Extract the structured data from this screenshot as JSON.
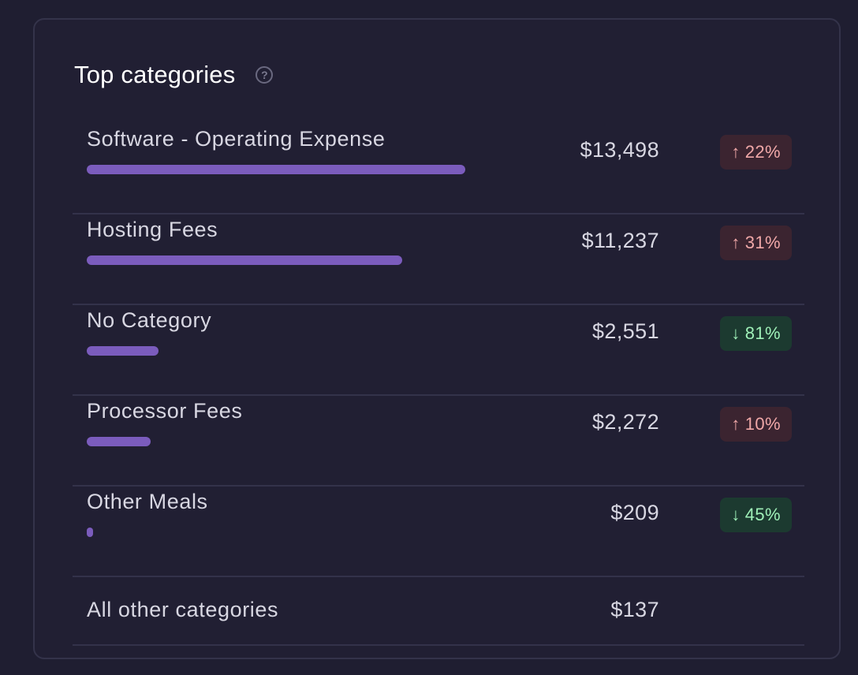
{
  "header": {
    "title": "Top categories",
    "help_icon": "question-icon",
    "help_glyph": "?"
  },
  "colors": {
    "bar": "#7b5cbd",
    "increase_bg": "#3b2430",
    "increase_text": "#f0a8a8",
    "decrease_bg": "#1c3a30",
    "decrease_text": "#9ff0b8"
  },
  "categories": [
    {
      "name": "Software - Operating Expense",
      "amount": "$13,498",
      "bar_fraction": 1.0,
      "change": {
        "direction": "up",
        "arrow": "↑",
        "percent": "22%"
      }
    },
    {
      "name": "Hosting Fees",
      "amount": "$11,237",
      "bar_fraction": 0.833,
      "change": {
        "direction": "up",
        "arrow": "↑",
        "percent": "31%"
      }
    },
    {
      "name": "No Category",
      "amount": "$2,551",
      "bar_fraction": 0.189,
      "change": {
        "direction": "down",
        "arrow": "↓",
        "percent": "81%"
      }
    },
    {
      "name": "Processor Fees",
      "amount": "$2,272",
      "bar_fraction": 0.168,
      "change": {
        "direction": "up",
        "arrow": "↑",
        "percent": "10%"
      }
    },
    {
      "name": "Other Meals",
      "amount": "$209",
      "bar_fraction": 0.016,
      "change": {
        "direction": "down",
        "arrow": "↓",
        "percent": "45%"
      }
    }
  ],
  "other": {
    "name": "All other categories",
    "amount": "$137"
  }
}
